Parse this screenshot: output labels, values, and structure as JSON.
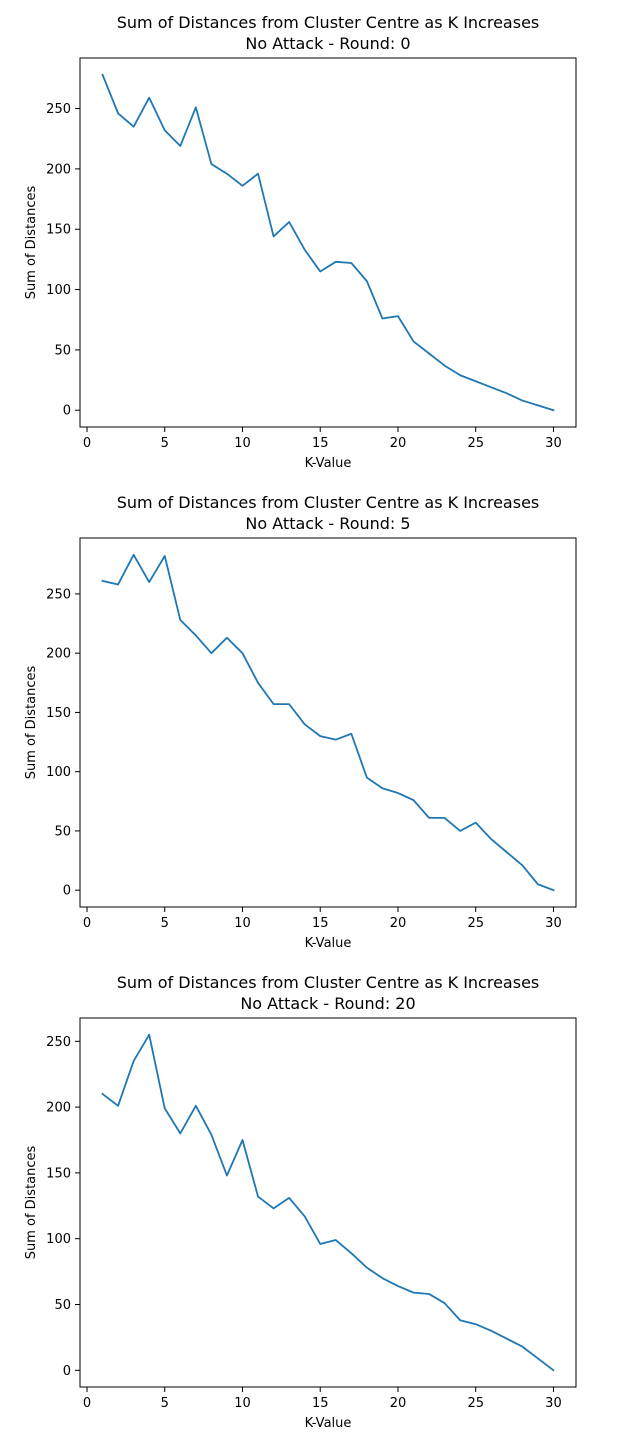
{
  "colors": {
    "line": "#1f77b4",
    "axis": "#000000",
    "background": "#ffffff"
  },
  "chart_data": [
    {
      "type": "line",
      "title": "Sum of Distances from Cluster Centre as K Increases",
      "subtitle": "No Attack - Round: 0",
      "xlabel": "K-Value",
      "ylabel": "Sum of Distances",
      "xlim": [
        -0.45,
        31.45
      ],
      "ylim": [
        -13.9,
        291.9
      ],
      "xticks": [
        0,
        5,
        10,
        15,
        20,
        25,
        30
      ],
      "yticks": [
        0,
        50,
        100,
        150,
        200,
        250
      ],
      "grid": false,
      "legend": "none",
      "x": [
        1,
        2,
        3,
        4,
        5,
        6,
        7,
        8,
        9,
        10,
        11,
        12,
        13,
        14,
        15,
        16,
        17,
        18,
        19,
        20,
        21,
        22,
        23,
        24,
        25,
        26,
        27,
        28,
        29,
        30
      ],
      "series": [
        {
          "values": [
            278,
            246,
            235,
            259,
            232,
            219,
            251,
            204,
            196,
            186,
            196,
            144,
            156,
            133,
            115,
            123,
            122,
            107,
            76,
            78,
            57,
            47,
            37,
            29,
            24,
            19,
            14,
            8,
            4,
            0
          ]
        }
      ]
    },
    {
      "type": "line",
      "title": "Sum of Distances from Cluster Centre as K Increases",
      "subtitle": "No Attack - Round: 5",
      "xlabel": "K-Value",
      "ylabel": "Sum of Distances",
      "xlim": [
        -0.45,
        31.45
      ],
      "ylim": [
        -14.2,
        297.2
      ],
      "xticks": [
        0,
        5,
        10,
        15,
        20,
        25,
        30
      ],
      "yticks": [
        0,
        50,
        100,
        150,
        200,
        250
      ],
      "grid": false,
      "legend": "none",
      "x": [
        1,
        2,
        3,
        4,
        5,
        6,
        7,
        8,
        9,
        10,
        11,
        12,
        13,
        14,
        15,
        16,
        17,
        18,
        19,
        20,
        21,
        22,
        23,
        24,
        25,
        26,
        27,
        28,
        29,
        30
      ],
      "series": [
        {
          "values": [
            261,
            258,
            283,
            260,
            282,
            228,
            215,
            200,
            213,
            200,
            175,
            157,
            157,
            140,
            130,
            127,
            132,
            95,
            86,
            82,
            76,
            61,
            61,
            50,
            57,
            43,
            32,
            21,
            5,
            0
          ]
        }
      ]
    },
    {
      "type": "line",
      "title": "Sum of Distances from Cluster Centre as K Increases",
      "subtitle": "No Attack - Round: 20",
      "xlabel": "K-Value",
      "ylabel": "Sum of Distances",
      "xlim": [
        -0.45,
        31.45
      ],
      "ylim": [
        -12.7,
        267.7
      ],
      "xticks": [
        0,
        5,
        10,
        15,
        20,
        25,
        30
      ],
      "yticks": [
        0,
        50,
        100,
        150,
        200,
        250
      ],
      "grid": false,
      "legend": "none",
      "x": [
        1,
        2,
        3,
        4,
        5,
        6,
        7,
        8,
        9,
        10,
        11,
        12,
        13,
        14,
        15,
        16,
        17,
        18,
        19,
        20,
        21,
        22,
        23,
        24,
        25,
        26,
        27,
        28,
        29,
        30
      ],
      "series": [
        {
          "values": [
            210,
            201,
            235,
            255,
            199,
            180,
            201,
            179,
            148,
            175,
            132,
            123,
            131,
            117,
            96,
            99,
            89,
            78,
            70,
            64,
            59,
            58,
            51,
            38,
            35,
            30,
            24,
            18,
            9,
            0
          ]
        }
      ]
    }
  ]
}
